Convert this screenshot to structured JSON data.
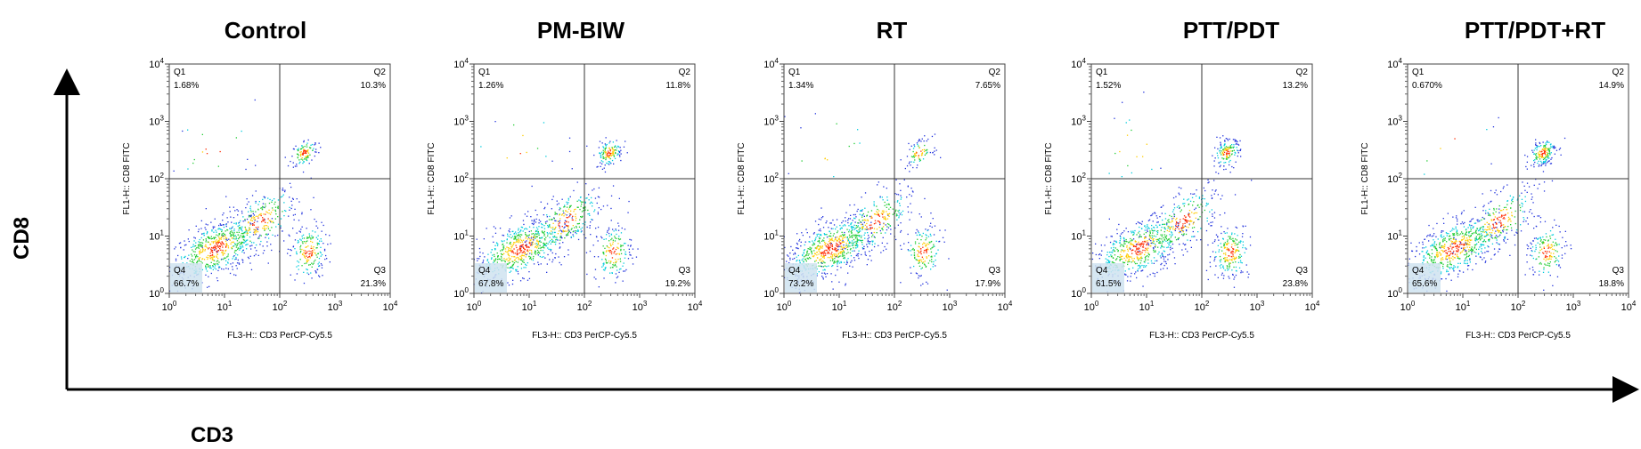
{
  "figure": {
    "big_y_label": "CD8",
    "big_x_label": "CD3"
  },
  "chart_data": [
    {
      "type": "scatter",
      "title": "Control",
      "xlabel": "FL3-H:: CD3 PerCP-Cy5.5",
      "ylabel": "FL1-H:: CD8 FITC",
      "x_scale": "log",
      "y_scale": "log",
      "xlim": [
        1,
        10000
      ],
      "ylim": [
        1,
        10000
      ],
      "x_ticks": [
        "10^0",
        "10^1",
        "10^2",
        "10^3",
        "10^4"
      ],
      "y_ticks": [
        "10^0",
        "10^1",
        "10^2",
        "10^3",
        "10^4"
      ],
      "quadrant_gate": {
        "x": 100,
        "y": 100
      },
      "quadrants": [
        {
          "name": "Q1",
          "percent": "1.68%"
        },
        {
          "name": "Q2",
          "percent": "10.3%"
        },
        {
          "name": "Q3",
          "percent": "21.3%"
        },
        {
          "name": "Q4",
          "percent": "66.7%"
        }
      ]
    },
    {
      "type": "scatter",
      "title": "PM-BIW",
      "xlabel": "FL3-H:: CD3 PerCP-Cy5.5",
      "ylabel": "FL1-H:: CD8 FITC",
      "x_scale": "log",
      "y_scale": "log",
      "xlim": [
        1,
        10000
      ],
      "ylim": [
        1,
        10000
      ],
      "x_ticks": [
        "10^0",
        "10^1",
        "10^2",
        "10^3",
        "10^4"
      ],
      "y_ticks": [
        "10^0",
        "10^1",
        "10^2",
        "10^3",
        "10^4"
      ],
      "quadrant_gate": {
        "x": 100,
        "y": 100
      },
      "quadrants": [
        {
          "name": "Q1",
          "percent": "1.26%"
        },
        {
          "name": "Q2",
          "percent": "11.8%"
        },
        {
          "name": "Q3",
          "percent": "19.2%"
        },
        {
          "name": "Q4",
          "percent": "67.8%"
        }
      ]
    },
    {
      "type": "scatter",
      "title": "RT",
      "xlabel": "FL3-H:: CD3 PerCP-Cy5.5",
      "ylabel": "FL1-H:: CD8 FITC",
      "x_scale": "log",
      "y_scale": "log",
      "xlim": [
        1,
        10000
      ],
      "ylim": [
        1,
        10000
      ],
      "x_ticks": [
        "10^0",
        "10^1",
        "10^2",
        "10^3",
        "10^4"
      ],
      "y_ticks": [
        "10^0",
        "10^1",
        "10^2",
        "10^3",
        "10^4"
      ],
      "quadrant_gate": {
        "x": 100,
        "y": 100
      },
      "quadrants": [
        {
          "name": "Q1",
          "percent": "1.34%"
        },
        {
          "name": "Q2",
          "percent": "7.65%"
        },
        {
          "name": "Q3",
          "percent": "17.9%"
        },
        {
          "name": "Q4",
          "percent": "73.2%"
        }
      ]
    },
    {
      "type": "scatter",
      "title": "PTT/PDT",
      "xlabel": "FL3-H:: CD3 PerCP-Cy5.5",
      "ylabel": "FL1-H:: CD8 FITC",
      "x_scale": "log",
      "y_scale": "log",
      "xlim": [
        1,
        10000
      ],
      "ylim": [
        1,
        10000
      ],
      "x_ticks": [
        "10^0",
        "10^1",
        "10^2",
        "10^3",
        "10^4"
      ],
      "y_ticks": [
        "10^0",
        "10^1",
        "10^2",
        "10^3",
        "10^4"
      ],
      "quadrant_gate": {
        "x": 100,
        "y": 100
      },
      "quadrants": [
        {
          "name": "Q1",
          "percent": "1.52%"
        },
        {
          "name": "Q2",
          "percent": "13.2%"
        },
        {
          "name": "Q3",
          "percent": "23.8%"
        },
        {
          "name": "Q4",
          "percent": "61.5%"
        }
      ]
    },
    {
      "type": "scatter",
      "title": "PTT/PDT+RT",
      "xlabel": "FL3-H:: CD3 PerCP-Cy5.5",
      "ylabel": "FL1-H:: CD8 FITC",
      "x_scale": "log",
      "y_scale": "log",
      "xlim": [
        1,
        10000
      ],
      "ylim": [
        1,
        10000
      ],
      "x_ticks": [
        "10^0",
        "10^1",
        "10^2",
        "10^3",
        "10^4"
      ],
      "y_ticks": [
        "10^0",
        "10^1",
        "10^2",
        "10^3",
        "10^4"
      ],
      "quadrant_gate": {
        "x": 100,
        "y": 100
      },
      "quadrants": [
        {
          "name": "Q1",
          "percent": "0.670%"
        },
        {
          "name": "Q2",
          "percent": "14.9%"
        },
        {
          "name": "Q3",
          "percent": "18.8%"
        },
        {
          "name": "Q4",
          "percent": "65.6%"
        }
      ]
    }
  ]
}
